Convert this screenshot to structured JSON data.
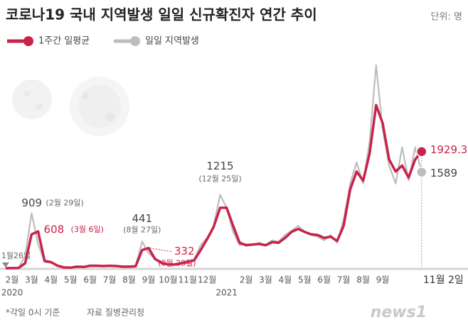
{
  "chart_data": {
    "type": "line",
    "title": "코로나19 국내 지역발생 일일 신규확진자 연간 추이",
    "unit": "단위: 명",
    "categories": [
      null,
      "2월",
      null,
      null,
      "3월",
      null,
      null,
      "4월",
      null,
      null,
      "5월",
      null,
      null,
      "6월",
      null,
      null,
      "7월",
      null,
      null,
      "8월",
      null,
      null,
      "9월",
      null,
      null,
      "10월",
      null,
      null,
      "11월",
      null,
      null,
      "12월",
      null,
      null,
      null,
      null,
      null,
      "2월",
      null,
      null,
      "3월",
      null,
      null,
      "4월",
      null,
      null,
      "5월",
      null,
      null,
      "6월",
      null,
      null,
      "7월",
      null,
      null,
      "8월",
      null,
      null,
      "9월",
      null,
      null,
      null,
      null,
      null,
      "11월 2일"
    ],
    "year_labels": [
      "2020",
      "2021"
    ],
    "series": [
      {
        "name": "1주간 일평균",
        "color": "#c8234a",
        "values": [
          0,
          1,
          3,
          80,
          560,
          608,
          120,
          100,
          40,
          12,
          8,
          25,
          20,
          40,
          40,
          35,
          40,
          35,
          25,
          25,
          30,
          300,
          332,
          150,
          90,
          60,
          60,
          80,
          100,
          130,
          300,
          480,
          680,
          1000,
          1000,
          700,
          420,
          380,
          390,
          400,
          380,
          430,
          420,
          500,
          600,
          650,
          600,
          560,
          550,
          500,
          520,
          450,
          700,
          1300,
          1600,
          1450,
          1900,
          2700,
          2400,
          1800,
          1600,
          1700,
          1500,
          1800,
          1929.3
        ]
      },
      {
        "name": "일일 지역발생",
        "color": "#bdbdbd",
        "values": [
          0,
          2,
          5,
          200,
          909,
          400,
          100,
          90,
          30,
          10,
          5,
          30,
          20,
          35,
          45,
          30,
          40,
          30,
          30,
          30,
          40,
          441,
          250,
          150,
          70,
          60,
          70,
          90,
          120,
          140,
          380,
          500,
          700,
          1215,
          1000,
          600,
          380,
          400,
          380,
          420,
          380,
          460,
          440,
          550,
          620,
          700,
          600,
          550,
          520,
          460,
          550,
          420,
          800,
          1400,
          1750,
          1400,
          2100,
          3360,
          2300,
          1700,
          1400,
          2000,
          1450,
          2000,
          1589
        ]
      }
    ],
    "ylim": [
      0,
      3700
    ],
    "annotations": [
      {
        "value": 909,
        "note": "(2월 29일)"
      },
      {
        "value": 608,
        "note": "(3월 6일)"
      },
      {
        "value": 441,
        "note": "(8월 27일)"
      },
      {
        "value": 332,
        "note": "(8월 28일)"
      },
      {
        "value": 1215,
        "note": "(12월 25일)"
      },
      {
        "value": 1929.3
      },
      {
        "value": 1589
      }
    ],
    "start_note": "1월26일",
    "footnote": "*각일 0시 기준",
    "source": "자료 질병관리청",
    "logo": "news1"
  }
}
